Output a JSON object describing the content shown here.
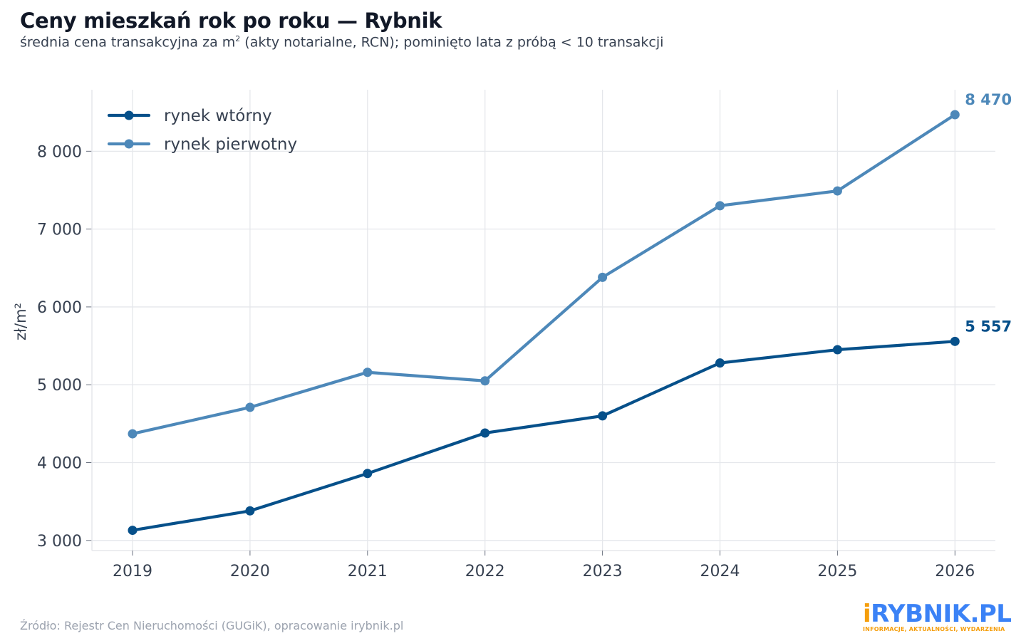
{
  "title": "Ceny mieszkań rok po roku — Rybnik",
  "subtitle_pre": "średnia cena transakcyjna za m",
  "subtitle_sup": "2",
  "subtitle_post": " (akty notarialne, RCN); pominięto lata z próbą < 10 transakcji",
  "source": "Źródło: Rejestr Cen Nieruchomości (GUGiK), opracowanie irybnik.pl",
  "logo": {
    "accent_char": "i",
    "main": "RYBNIK.PL",
    "tagline": "INFORMACJE, AKTUALNOŚCI, WYDARZENIA"
  },
  "chart_data": {
    "type": "line",
    "x": [
      2019,
      2020,
      2021,
      2022,
      2023,
      2024,
      2025,
      2026
    ],
    "xlabel": "",
    "ylabel": "zł/m²",
    "ylim": [
      2870,
      8790
    ],
    "yticks": [
      3000,
      4000,
      5000,
      6000,
      7000,
      8000
    ],
    "ytick_labels": [
      "3 000",
      "4 000",
      "5 000",
      "6 000",
      "7 000",
      "8 000"
    ],
    "grid": true,
    "legend": "top-left",
    "series": [
      {
        "name": "rynek wtórny",
        "color": "#06508a",
        "values": [
          3130,
          3380,
          3860,
          4380,
          4600,
          5280,
          5450,
          5557
        ],
        "end_label": "5 557"
      },
      {
        "name": "rynek pierwotny",
        "color": "#4d88b9",
        "values": [
          4370,
          4710,
          5160,
          5050,
          6380,
          7300,
          7490,
          8470
        ],
        "end_label": "8 470"
      }
    ]
  }
}
